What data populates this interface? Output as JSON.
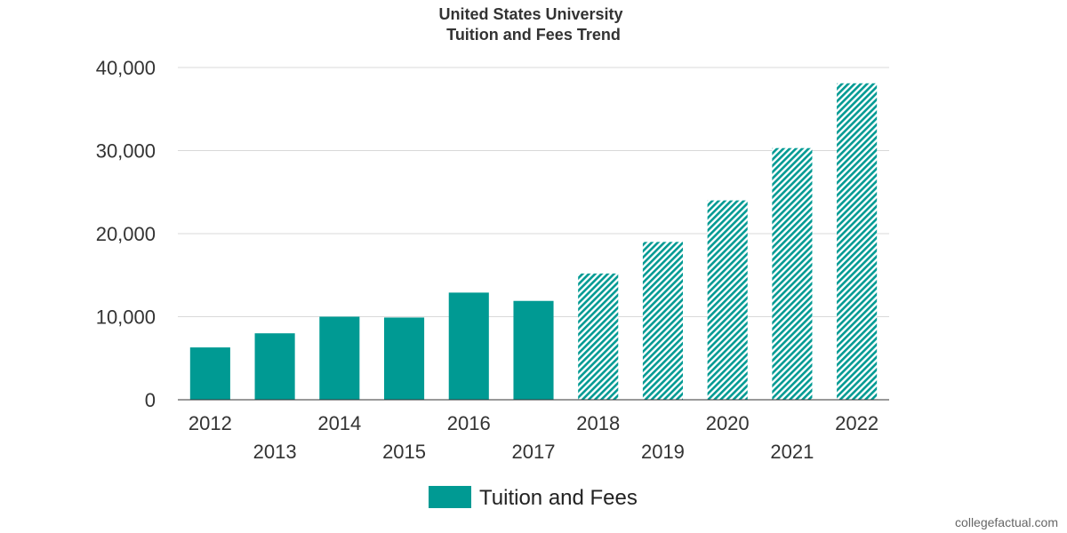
{
  "chart_data": {
    "type": "bar",
    "title": "United States University",
    "subtitle": "Tuition and Fees Trend",
    "categories": [
      "2012",
      "2013",
      "2014",
      "2015",
      "2016",
      "2017",
      "2018",
      "2019",
      "2020",
      "2021",
      "2022"
    ],
    "series": [
      {
        "name": "Tuition and Fees",
        "values": [
          6300,
          8000,
          10000,
          9900,
          12900,
          11900,
          15200,
          19000,
          24000,
          30300,
          38100
        ],
        "projected_from_index": 6
      }
    ],
    "ylim": [
      0,
      40000
    ],
    "yticks": [
      "0",
      "10,000",
      "20,000",
      "30,000",
      "40,000"
    ],
    "ytick_values": [
      0,
      10000,
      20000,
      30000,
      40000
    ],
    "xlabel": "",
    "ylabel": "",
    "grid": true,
    "legend_position": "bottom"
  },
  "colors": {
    "bar": "#009a93",
    "hatch_bg": "#ffffff",
    "grid": "#d9d9d9",
    "axis": "#333333"
  },
  "credit": "collegefactual.com"
}
